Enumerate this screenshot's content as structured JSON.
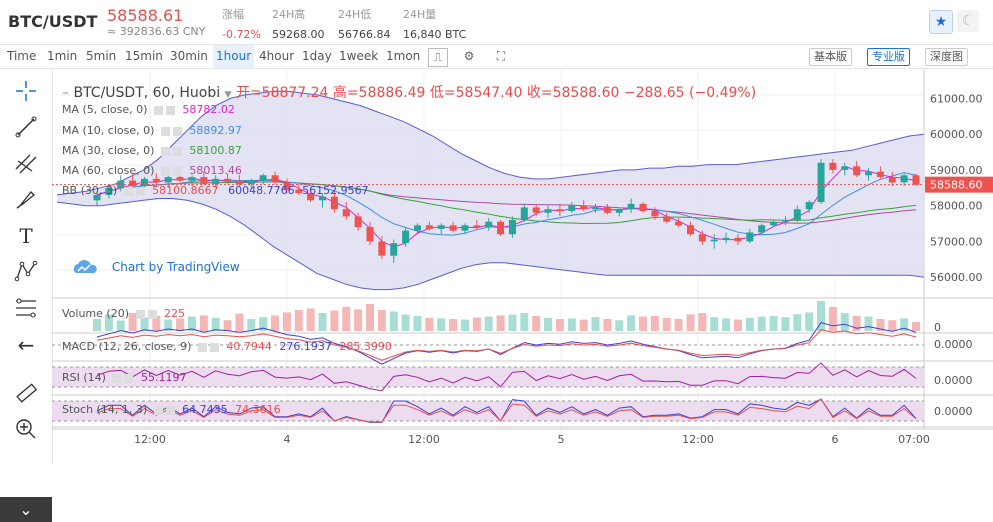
{
  "header": {
    "pair": "BTC/USDT",
    "price": "58588.61",
    "cny": "≈ 392836.63 CNY",
    "stats": [
      {
        "key": "涨幅",
        "value": "-0.72%",
        "red": true
      },
      {
        "key": "24H高",
        "value": "59268.00",
        "red": false
      },
      {
        "key": "24H低",
        "value": "56766.84",
        "red": false
      },
      {
        "key": "24H量",
        "value": "16,840 BTC",
        "red": false
      }
    ]
  },
  "toolbar": {
    "intervals": [
      "Time",
      "1min",
      "5min",
      "15min",
      "30min",
      "1hour",
      "4hour",
      "1day",
      "1week",
      "1mon"
    ],
    "active_interval": "1hour",
    "views": [
      "基本版",
      "专业版",
      "深度图"
    ],
    "active_view": "专业版"
  },
  "chart_title": {
    "symbol": "BTC/USDT, 60, Huobi",
    "open_label": "开=58877.24",
    "high_label": "高=58886.49",
    "low_label": "低=58547.40",
    "close_label": "收=58588.60",
    "change": "−288.65 (−0.49%)"
  },
  "legend": {
    "ma5": {
      "name": "MA (5, close, 0)",
      "value": "58782.02",
      "color": "#e020e0"
    },
    "ma10": {
      "name": "MA (10, close, 0)",
      "value": "58892.97",
      "color": "#3f8ee6"
    },
    "ma30": {
      "name": "MA (30, close, 0)",
      "value": "58100.87",
      "color": "#3aa33a"
    },
    "ma60": {
      "name": "MA (60, close, 0)",
      "value": "58013.46",
      "color": "#b04aa0"
    },
    "bb": {
      "name": "BB (30, 3)",
      "v1": "58100.8667",
      "v2": "60048.7766",
      "v3": "56152.9567"
    },
    "volume": {
      "name": "Volume (20)",
      "value": "225"
    },
    "macd": {
      "name": "MACD (12, 26, close, 9)",
      "v1": "40.7944",
      "v2": "276.1937",
      "v3": "285.3990"
    },
    "rsi": {
      "name": "RSI (14)",
      "value": "55.1197"
    },
    "stoch": {
      "name": "Stoch (14, 1, 3)",
      "v1": "64.7435",
      "v2": "74.3616"
    }
  },
  "price_axis": {
    "ticks": [
      "61000.00",
      "60000.00",
      "59000.00",
      "58000.00",
      "57000.00",
      "56000.00"
    ],
    "last_price": "58588.60",
    "volume_tick": "0",
    "macd_tick": "0.0000",
    "rsi_tick": "0.0000",
    "stoch_tick": "0.0000"
  },
  "time_axis": [
    "12:00",
    "4",
    "12:00",
    "5",
    "12:00",
    "6",
    "07:00"
  ],
  "watermark": "Chart by TradingView",
  "chart_data": {
    "type": "candlestick",
    "y_range": [
      55500,
      61600
    ],
    "candles": [
      [
        58150,
        58400,
        58000,
        58300
      ],
      [
        58300,
        58600,
        58200,
        58500
      ],
      [
        58500,
        58850,
        58400,
        58700
      ],
      [
        58700,
        58900,
        58500,
        58550
      ],
      [
        58550,
        58800,
        58400,
        58750
      ],
      [
        58750,
        58900,
        58600,
        58650
      ],
      [
        58650,
        58850,
        58500,
        58800
      ],
      [
        58800,
        59000,
        58650,
        58700
      ],
      [
        58700,
        58850,
        58550,
        58800
      ],
      [
        58800,
        58950,
        58650,
        58600
      ],
      [
        58600,
        58850,
        58500,
        58750
      ],
      [
        58750,
        58900,
        58600,
        58700
      ],
      [
        58700,
        58850,
        58550,
        58600
      ],
      [
        58600,
        58750,
        58450,
        58700
      ],
      [
        58700,
        58900,
        58600,
        58850
      ],
      [
        58850,
        58950,
        58600,
        58650
      ],
      [
        58650,
        58750,
        58350,
        58450
      ],
      [
        58450,
        58600,
        58300,
        58350
      ],
      [
        58350,
        58500,
        58100,
        58150
      ],
      [
        58150,
        58350,
        57950,
        58250
      ],
      [
        58250,
        58400,
        57800,
        57900
      ],
      [
        57900,
        58100,
        57600,
        57700
      ],
      [
        57700,
        57800,
        57300,
        57400
      ],
      [
        57400,
        57550,
        56900,
        57000
      ],
      [
        57000,
        57150,
        56500,
        56600
      ],
      [
        56600,
        57050,
        56400,
        56950
      ],
      [
        56950,
        57400,
        56850,
        57300
      ],
      [
        57300,
        57500,
        57200,
        57450
      ],
      [
        57450,
        57550,
        57300,
        57350
      ],
      [
        57350,
        57500,
        57200,
        57450
      ],
      [
        57450,
        57550,
        57250,
        57300
      ],
      [
        57300,
        57500,
        57200,
        57450
      ],
      [
        57450,
        57600,
        57350,
        57400
      ],
      [
        57400,
        57650,
        57300,
        57550
      ],
      [
        57550,
        57600,
        57150,
        57200
      ],
      [
        57200,
        57700,
        57100,
        57600
      ],
      [
        57600,
        58050,
        57550,
        57950
      ],
      [
        57950,
        58050,
        57700,
        57800
      ],
      [
        57800,
        58000,
        57650,
        57900
      ],
      [
        57900,
        58050,
        57700,
        57850
      ],
      [
        57850,
        58100,
        57800,
        58000
      ],
      [
        58000,
        58150,
        57850,
        57900
      ],
      [
        57900,
        58050,
        57800,
        57950
      ],
      [
        57950,
        58050,
        57750,
        57800
      ],
      [
        57800,
        57950,
        57700,
        57900
      ],
      [
        57900,
        58200,
        57800,
        58050
      ],
      [
        58050,
        58100,
        57800,
        57850
      ],
      [
        57850,
        57950,
        57600,
        57700
      ],
      [
        57700,
        57800,
        57500,
        57550
      ],
      [
        57550,
        57650,
        57400,
        57450
      ],
      [
        57450,
        57550,
        57150,
        57200
      ],
      [
        57200,
        57300,
        56900,
        57000
      ],
      [
        57000,
        57200,
        56800,
        57050
      ],
      [
        57050,
        57250,
        56950,
        57100
      ],
      [
        57100,
        57200,
        56900,
        57000
      ],
      [
        57000,
        57350,
        56950,
        57250
      ],
      [
        57250,
        57500,
        57200,
        57450
      ],
      [
        57450,
        57600,
        57400,
        57550
      ],
      [
        57550,
        57700,
        57450,
        57600
      ],
      [
        57600,
        58000,
        57550,
        57900
      ],
      [
        57900,
        58150,
        57800,
        58100
      ],
      [
        58100,
        59300,
        58050,
        59200
      ],
      [
        59200,
        59300,
        58900,
        59000
      ],
      [
        59000,
        59200,
        58850,
        59100
      ],
      [
        59100,
        59250,
        58800,
        58850
      ],
      [
        58850,
        59050,
        58700,
        58950
      ],
      [
        58950,
        59100,
        58750,
        58800
      ],
      [
        58800,
        58950,
        58550,
        58650
      ],
      [
        58650,
        58900,
        58550,
        58850
      ],
      [
        58850,
        58900,
        58550,
        58588
      ]
    ],
    "volumes": [
      40,
      55,
      35,
      60,
      45,
      50,
      38,
      42,
      48,
      52,
      44,
      36,
      58,
      40,
      46,
      52,
      62,
      70,
      75,
      60,
      68,
      80,
      72,
      90,
      70,
      65,
      55,
      50,
      44,
      42,
      40,
      38,
      45,
      48,
      52,
      55,
      60,
      50,
      44,
      40,
      42,
      38,
      46,
      40,
      36,
      52,
      48,
      50,
      44,
      40,
      55,
      60,
      46,
      42,
      38,
      44,
      48,
      50,
      46,
      56,
      62,
      100,
      80,
      60,
      50,
      48,
      40,
      36,
      42,
      30
    ],
    "bb_upper": [
      58300,
      58350,
      58400,
      58500,
      58600,
      58800,
      59000,
      59300,
      59700,
      60100,
      60500,
      60800,
      61000,
      61100,
      61150,
      61200,
      61200,
      61150,
      61100,
      61000,
      60900,
      60800,
      60650,
      60500,
      60350,
      60150,
      59950,
      59700,
      59450,
      59250,
      59050,
      58900,
      58800,
      58750,
      58750,
      58800,
      58850,
      58900,
      58950,
      59000,
      59000,
      59050,
      59050,
      59100,
      59100,
      59150,
      59150,
      59150,
      59200,
      59250,
      59300,
      59350,
      59400,
      59450,
      59500,
      59550,
      59650,
      59750,
      59850,
      59950,
      60000
    ],
    "bb_lower": [
      58100,
      58050,
      58000,
      58000,
      58050,
      58100,
      58150,
      58200,
      58200,
      58150,
      58050,
      57900,
      57700,
      57450,
      57150,
      56850,
      56600,
      56350,
      56100,
      55950,
      55800,
      55700,
      55650,
      55650,
      55700,
      55800,
      55950,
      56100,
      56250,
      56350,
      56400,
      56400,
      56350,
      56300,
      56250,
      56200,
      56150,
      56100,
      56050,
      56050,
      56050,
      56050,
      56050,
      56050,
      56050,
      56050,
      56050,
      56050,
      56050,
      56050,
      56050,
      56050,
      56050,
      56050,
      56050,
      56050,
      56050,
      56050,
      56050,
      56050,
      56000
    ]
  }
}
